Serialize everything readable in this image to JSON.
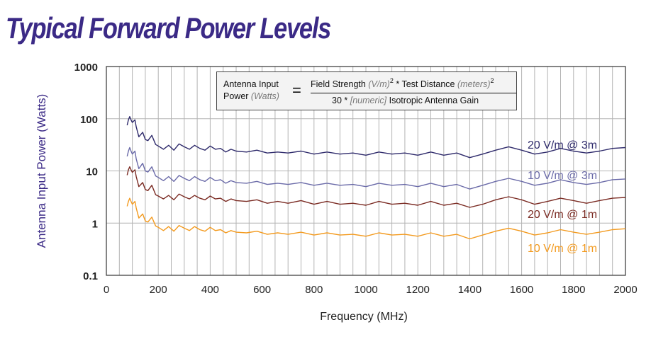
{
  "title": "Typical Forward Power Levels",
  "formula": {
    "lhs_line1": "Antenna Input",
    "lhs_line2_prefix": "Power ",
    "lhs_line2_unit": "(Watts)",
    "equals": "=",
    "num_a": "Field Strength ",
    "num_a_unit": "(V/m)",
    "num_exp1": "2",
    "num_b": " * Test Distance ",
    "num_b_unit": "(meters)",
    "num_exp2": "2",
    "den_a": "30 * ",
    "den_b": "[numeric]",
    "den_c": " Isotropic Antenna Gain"
  },
  "chart_data": {
    "type": "line",
    "xlabel": "Frequency (MHz)",
    "ylabel": "Antenna Input Power (Watts)",
    "xlim": [
      0,
      2000
    ],
    "ylim": [
      0.1,
      1000
    ],
    "yscale": "log",
    "grid": true,
    "x_ticks": [
      "0",
      "200",
      "400",
      "600",
      "800",
      "1000",
      "1200",
      "1400",
      "1600",
      "1800",
      "2000"
    ],
    "y_ticks": [
      "1000",
      "100",
      "10",
      "1",
      "0.1"
    ],
    "x": [
      80,
      85,
      90,
      95,
      100,
      110,
      115,
      125,
      140,
      150,
      160,
      175,
      190,
      200,
      220,
      240,
      260,
      280,
      300,
      320,
      340,
      360,
      380,
      400,
      420,
      440,
      460,
      480,
      500,
      540,
      580,
      620,
      660,
      700,
      750,
      800,
      850,
      900,
      950,
      1000,
      1050,
      1100,
      1150,
      1200,
      1250,
      1300,
      1350,
      1400,
      1450,
      1500,
      1550,
      1600,
      1650,
      1700,
      1750,
      1800,
      1850,
      1900,
      1950,
      2000
    ],
    "series": [
      {
        "name": "20 V/m @ 3m",
        "color": "#2e2a6b",
        "values": [
          75,
          95,
          110,
          95,
          85,
          95,
          70,
          45,
          55,
          40,
          38,
          48,
          32,
          30,
          26,
          31,
          25,
          33,
          29,
          26,
          31,
          27,
          25,
          30,
          26,
          27,
          23,
          26,
          24,
          23,
          25,
          22,
          23,
          22,
          24,
          21,
          23,
          21,
          22,
          20,
          23,
          21,
          22,
          20,
          23,
          20,
          22,
          18,
          21,
          25,
          29,
          25,
          21,
          23,
          27,
          24,
          22,
          24,
          27,
          28
        ]
      },
      {
        "name": "10 V/m @ 3m",
        "color": "#6a6aa8",
        "values": [
          19,
          24,
          28,
          24,
          21,
          24,
          17,
          11,
          14,
          10,
          9.5,
          12,
          8,
          7.5,
          6.5,
          7.8,
          6.3,
          8.2,
          7.2,
          6.5,
          7.8,
          6.8,
          6.3,
          7.5,
          6.5,
          6.8,
          5.8,
          6.5,
          6,
          5.8,
          6.3,
          5.5,
          5.8,
          5.5,
          6,
          5.3,
          5.8,
          5.3,
          5.5,
          5,
          5.8,
          5.3,
          5.5,
          5,
          5.8,
          5,
          5.5,
          4.5,
          5.3,
          6.3,
          7.2,
          6.3,
          5.3,
          5.8,
          6.8,
          6,
          5.5,
          6,
          6.8,
          7
        ]
      },
      {
        "name": "20 V/m @ 1m",
        "color": "#7a2a22",
        "values": [
          8.3,
          10.5,
          12,
          10.5,
          9.4,
          10.5,
          7.8,
          5,
          6,
          4.4,
          4.2,
          5.3,
          3.5,
          3.3,
          2.9,
          3.4,
          2.8,
          3.6,
          3.2,
          2.9,
          3.4,
          3,
          2.8,
          3.3,
          2.9,
          3,
          2.6,
          2.9,
          2.7,
          2.6,
          2.8,
          2.4,
          2.6,
          2.4,
          2.7,
          2.3,
          2.6,
          2.3,
          2.4,
          2.2,
          2.6,
          2.3,
          2.4,
          2.2,
          2.6,
          2.2,
          2.4,
          2,
          2.3,
          2.8,
          3.2,
          2.8,
          2.3,
          2.6,
          3,
          2.7,
          2.4,
          2.7,
          3,
          3.1
        ]
      },
      {
        "name": "10 V/m @ 1m",
        "color": "#f39a1e",
        "values": [
          2.1,
          2.6,
          3,
          2.6,
          2.3,
          2.6,
          1.95,
          1.25,
          1.5,
          1.1,
          1.05,
          1.3,
          0.88,
          0.83,
          0.72,
          0.86,
          0.7,
          0.9,
          0.8,
          0.72,
          0.86,
          0.75,
          0.7,
          0.83,
          0.72,
          0.75,
          0.65,
          0.72,
          0.67,
          0.65,
          0.7,
          0.61,
          0.65,
          0.61,
          0.67,
          0.59,
          0.65,
          0.59,
          0.61,
          0.56,
          0.65,
          0.59,
          0.61,
          0.56,
          0.65,
          0.56,
          0.61,
          0.5,
          0.59,
          0.7,
          0.8,
          0.7,
          0.59,
          0.65,
          0.75,
          0.67,
          0.61,
          0.67,
          0.75,
          0.78
        ]
      }
    ]
  }
}
